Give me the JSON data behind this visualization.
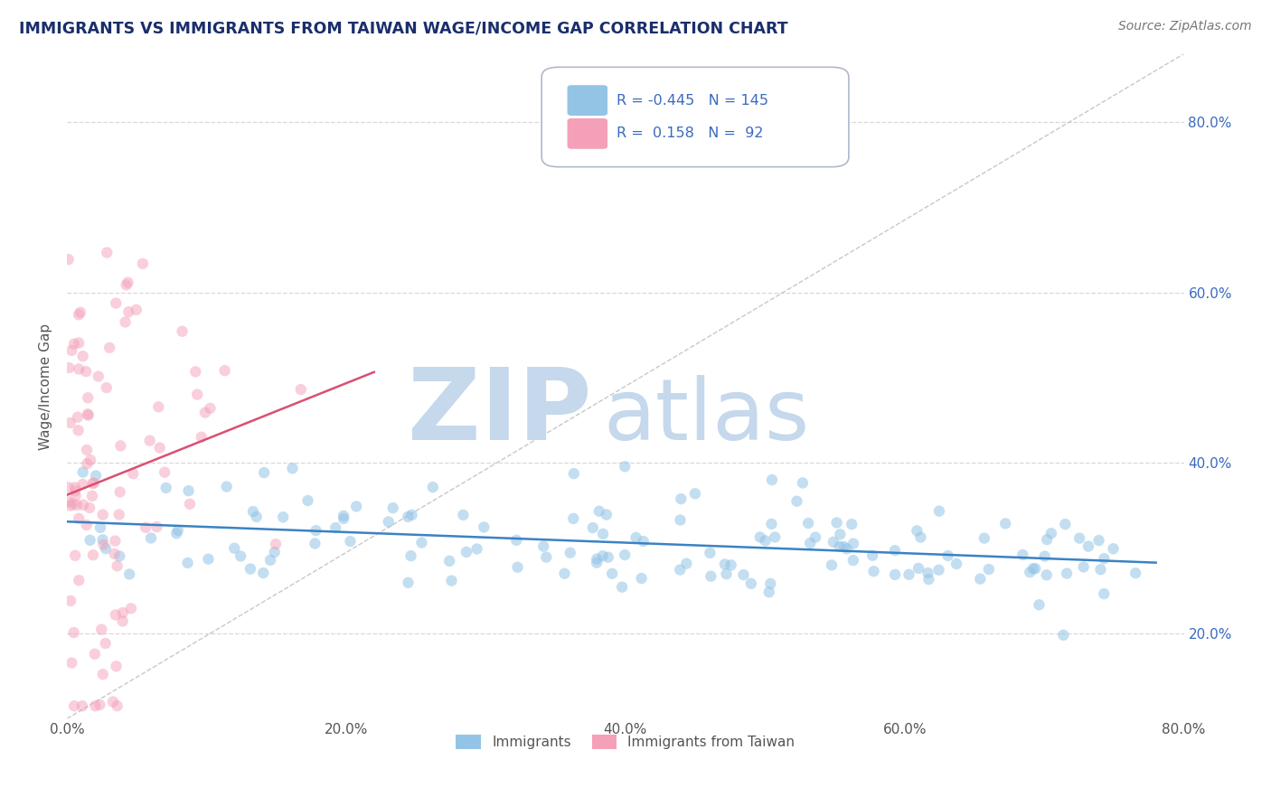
{
  "title": "IMMIGRANTS VS IMMIGRANTS FROM TAIWAN WAGE/INCOME GAP CORRELATION CHART",
  "source": "Source: ZipAtlas.com",
  "ylabel": "Wage/Income Gap",
  "xlim": [
    0.0,
    0.8
  ],
  "ylim": [
    0.1,
    0.88
  ],
  "xticks": [
    0.0,
    0.2,
    0.4,
    0.6,
    0.8
  ],
  "xtick_labels": [
    "0.0%",
    "20.0%",
    "40.0%",
    "60.0%",
    "80.0%"
  ],
  "ytick_labels_right": [
    "20.0%",
    "40.0%",
    "60.0%",
    "80.0%"
  ],
  "yticks_right": [
    0.2,
    0.4,
    0.6,
    0.8
  ],
  "blue_scatter_color": "#93c4e6",
  "pink_scatter_color": "#f4a0b8",
  "blue_trend_color": "#3b82c4",
  "pink_trend_color": "#d85070",
  "blue_scatter_alpha": 0.55,
  "pink_scatter_alpha": 0.5,
  "scatter_size": 80,
  "watermark_text_zip": "ZIP",
  "watermark_text_atlas": "atlas",
  "watermark_color": "#c5d8ec",
  "watermark_fontsize": 80,
  "background_color": "#ffffff",
  "grid_color": "#d8d8d8",
  "grid_style": "--",
  "title_color": "#1a2e6b",
  "source_color": "#777777",
  "legend_text_color": "#3a6abf",
  "blue_R": -0.445,
  "blue_N": 145,
  "pink_R": 0.158,
  "pink_N": 92,
  "ref_line_color": "#c8c8c8",
  "ref_line_style": "--",
  "legend_label_blue": "Immigrants",
  "legend_label_pink": "Immigrants from Taiwan"
}
